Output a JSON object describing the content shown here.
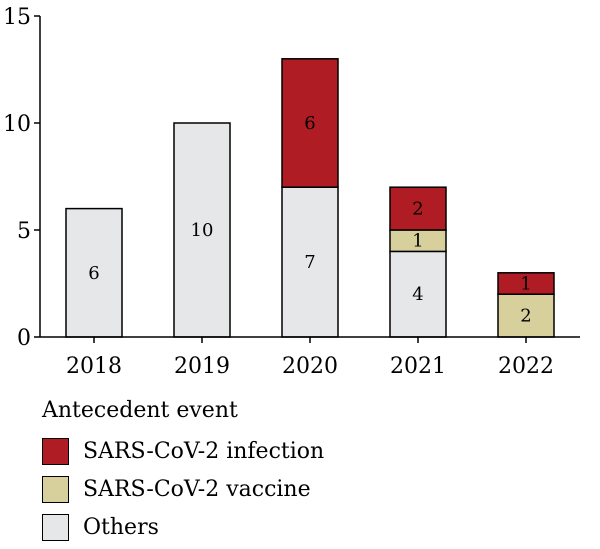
{
  "chart_data": {
    "type": "bar",
    "stacked": true,
    "categories": [
      "2018",
      "2019",
      "2020",
      "2021",
      "2022"
    ],
    "series": [
      {
        "name": "Others",
        "color": "#e6e7e9",
        "values": [
          6,
          10,
          7,
          4,
          0
        ]
      },
      {
        "name": "SARS-CoV-2 vaccine",
        "color": "#d7cf9c",
        "values": [
          0,
          0,
          0,
          1,
          2
        ]
      },
      {
        "name": "SARS-CoV-2 infection",
        "color": "#b01c23",
        "values": [
          0,
          0,
          6,
          2,
          1
        ]
      }
    ],
    "ylim": [
      0,
      15
    ],
    "yticks": [
      0,
      5,
      10,
      15
    ],
    "xlabel": "",
    "ylabel": "",
    "grid": false,
    "legend": {
      "title": "Antecedent event",
      "placement": "bottom-left",
      "items": [
        "SARS-CoV-2 infection",
        "SARS-CoV-2 vaccine",
        "Others"
      ]
    }
  }
}
